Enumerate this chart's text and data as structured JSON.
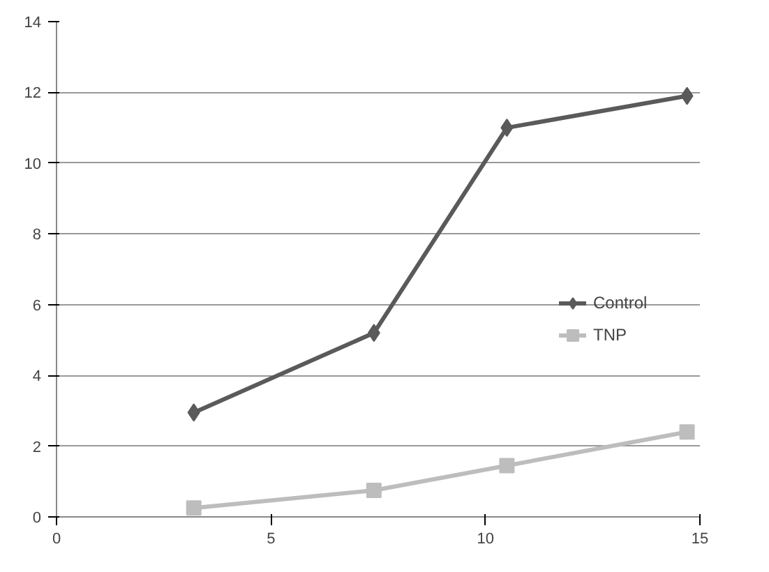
{
  "chart_data": {
    "type": "line",
    "xlim": [
      0,
      15
    ],
    "xticks": [
      0,
      5,
      10,
      15
    ],
    "ylim": [
      0,
      14
    ],
    "yticks": [
      0,
      2,
      4,
      6,
      8,
      10,
      12,
      14
    ],
    "grid": "y",
    "legend": "right",
    "series": [
      {
        "name": "Control",
        "color": "#5a5a5a",
        "marker": "diamond",
        "x": [
          3.2,
          7.4,
          10.5,
          14.7
        ],
        "values": [
          2.95,
          5.2,
          11.0,
          11.9
        ]
      },
      {
        "name": "TNP",
        "color": "#bdbdbd",
        "marker": "square",
        "x": [
          3.2,
          7.4,
          10.5,
          14.7
        ],
        "values": [
          0.25,
          0.75,
          1.45,
          2.4
        ]
      }
    ]
  }
}
